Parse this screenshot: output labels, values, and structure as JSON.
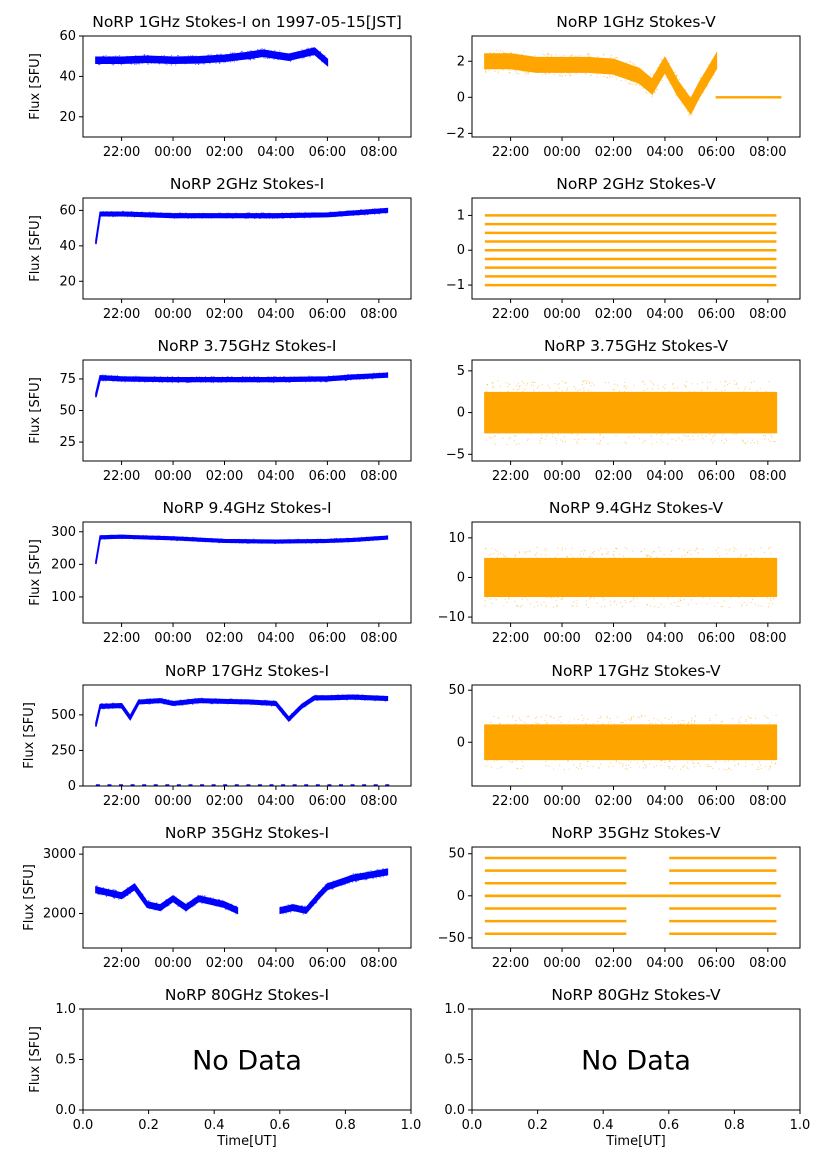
{
  "colors": {
    "stokes_i": "#0000ff",
    "stokes_v": "#ffa500",
    "axes": "#000000"
  },
  "chart_data": [
    {
      "type": "scatter",
      "title": "NoRP 1GHz Stokes-I on 1997-05-15[JST]",
      "ylabel": "Flux [SFU]",
      "xlabel": "",
      "xlim": [
        "1997-05-14 20:30",
        "1997-05-15 09:15"
      ],
      "ylim": [
        10,
        60
      ],
      "yticks": [
        20,
        40,
        60
      ],
      "xticks": [
        "22:00",
        "00:00",
        "02:00",
        "04:00",
        "06:00",
        "08:00"
      ],
      "grid": false,
      "series": [
        {
          "x": [
            "1997-05-14 21:00",
            "1997-05-14 22:00",
            "1997-05-14 23:00",
            "1997-05-15 00:00",
            "1997-05-15 01:00",
            "1997-05-15 02:00",
            "1997-05-15 03:00",
            "1997-05-15 03:30",
            "1997-05-15 04:00",
            "1997-05-15 04:30",
            "1997-05-15 05:00",
            "1997-05-15 05:30",
            "1997-05-15 06:00"
          ],
          "y": [
            48,
            48,
            48.5,
            48,
            48.2,
            49,
            50.5,
            51.5,
            50.5,
            49.5,
            51,
            52.5,
            47
          ],
          "band": 3
        }
      ]
    },
    {
      "type": "scatter",
      "title": "NoRP 1GHz Stokes-V",
      "ylabel": "",
      "xlabel": "",
      "xlim": [
        "1997-05-14 20:30",
        "1997-05-15 09:15"
      ],
      "ylim": [
        -2.2,
        3.4
      ],
      "yticks": [
        -2,
        0,
        2
      ],
      "xticks": [
        "22:00",
        "00:00",
        "02:00",
        "04:00",
        "06:00",
        "08:00"
      ],
      "grid": false,
      "series": [
        {
          "x": [
            "1997-05-14 21:00",
            "1997-05-14 22:00",
            "1997-05-14 23:00",
            "1997-05-15 00:00",
            "1997-05-15 01:00",
            "1997-05-15 02:00",
            "1997-05-15 03:00",
            "1997-05-15 03:30",
            "1997-05-15 04:00",
            "1997-05-15 04:30",
            "1997-05-15 05:00",
            "1997-05-15 05:20",
            "1997-05-15 05:45",
            "1997-05-15 06:00"
          ],
          "y": [
            2,
            2,
            1.8,
            1.8,
            1.8,
            1.7,
            1.2,
            0.6,
            1.8,
            0.5,
            -0.5,
            0.4,
            1.4,
            2.0
          ],
          "band": 0.8
        },
        {
          "x": [
            "1997-05-15 06:00",
            "1997-05-15 08:30"
          ],
          "y": [
            0,
            0
          ],
          "band": 0.05
        }
      ]
    },
    {
      "type": "scatter",
      "title": "NoRP 2GHz Stokes-I",
      "ylabel": "Flux [SFU]",
      "xlabel": "",
      "xlim": [
        "1997-05-14 20:30",
        "1997-05-15 09:15"
      ],
      "ylim": [
        10,
        67
      ],
      "yticks": [
        20,
        40,
        60
      ],
      "xticks": [
        "22:00",
        "00:00",
        "02:00",
        "04:00",
        "06:00",
        "08:00"
      ],
      "grid": false,
      "series": [
        {
          "x": [
            "1997-05-14 21:00",
            "1997-05-14 21:10",
            "1997-05-14 22:00",
            "1997-05-15 00:00",
            "1997-05-15 02:00",
            "1997-05-15 04:00",
            "1997-05-15 06:00",
            "1997-05-15 07:00",
            "1997-05-15 08:20"
          ],
          "y": [
            42,
            58,
            58,
            57,
            57,
            57,
            57.5,
            58.5,
            60
          ],
          "band": 2
        }
      ]
    },
    {
      "type": "scatter",
      "title": "NoRP 2GHz Stokes-V",
      "ylabel": "",
      "xlabel": "",
      "xlim": [
        "1997-05-14 20:30",
        "1997-05-15 09:15"
      ],
      "ylim": [
        -1.4,
        1.5
      ],
      "yticks": [
        -1,
        0,
        1
      ],
      "xticks": [
        "22:00",
        "00:00",
        "02:00",
        "04:00",
        "06:00",
        "08:00"
      ],
      "grid": false,
      "levels": [
        -1,
        -0.75,
        -0.5,
        -0.25,
        0,
        0.25,
        0.5,
        0.75,
        1
      ],
      "series": [
        {
          "x": [
            "1997-05-14 21:00",
            "1997-05-15 08:20"
          ],
          "y": [
            0,
            0
          ],
          "band": 0
        }
      ]
    },
    {
      "type": "scatter",
      "title": "NoRP 3.75GHz Stokes-I",
      "ylabel": "Flux [SFU]",
      "xlabel": "",
      "xlim": [
        "1997-05-14 20:30",
        "1997-05-15 09:15"
      ],
      "ylim": [
        10,
        90
      ],
      "yticks": [
        25,
        50,
        75
      ],
      "xticks": [
        "22:00",
        "00:00",
        "02:00",
        "04:00",
        "06:00",
        "08:00"
      ],
      "grid": false,
      "series": [
        {
          "x": [
            "1997-05-14 21:00",
            "1997-05-14 21:10",
            "1997-05-14 22:00",
            "1997-05-15 00:00",
            "1997-05-15 02:00",
            "1997-05-15 04:00",
            "1997-05-15 06:00",
            "1997-05-15 07:00",
            "1997-05-15 08:20"
          ],
          "y": [
            62,
            76,
            75,
            74.5,
            74.5,
            74.5,
            75,
            76.5,
            78
          ],
          "band": 3
        }
      ]
    },
    {
      "type": "scatter",
      "title": "NoRP 3.75GHz Stokes-V",
      "ylabel": "",
      "xlabel": "",
      "xlim": [
        "1997-05-14 20:30",
        "1997-05-15 09:15"
      ],
      "ylim": [
        -5.8,
        6.3
      ],
      "yticks": [
        -5,
        0,
        5
      ],
      "xticks": [
        "22:00",
        "00:00",
        "02:00",
        "04:00",
        "06:00",
        "08:00"
      ],
      "grid": false,
      "series": [
        {
          "x": [
            "1997-05-14 21:00",
            "1997-05-15 08:20"
          ],
          "y": [
            0,
            0
          ],
          "band": 4.8
        }
      ]
    },
    {
      "type": "scatter",
      "title": "NoRP 9.4GHz Stokes-I",
      "ylabel": "Flux [SFU]",
      "xlabel": "",
      "xlim": [
        "1997-05-14 20:30",
        "1997-05-15 09:15"
      ],
      "ylim": [
        20,
        330
      ],
      "yticks": [
        100,
        200,
        300
      ],
      "xticks": [
        "22:00",
        "00:00",
        "02:00",
        "04:00",
        "06:00",
        "08:00"
      ],
      "grid": false,
      "series": [
        {
          "x": [
            "1997-05-14 21:00",
            "1997-05-14 21:10",
            "1997-05-14 22:00",
            "1997-05-15 00:00",
            "1997-05-15 02:00",
            "1997-05-15 04:00",
            "1997-05-15 06:00",
            "1997-05-15 07:00",
            "1997-05-15 08:20"
          ],
          "y": [
            205,
            283,
            285,
            280,
            272,
            270,
            272,
            275,
            282
          ],
          "band": 8
        }
      ]
    },
    {
      "type": "scatter",
      "title": "NoRP 9.4GHz Stokes-V",
      "ylabel": "",
      "xlabel": "",
      "xlim": [
        "1997-05-14 20:30",
        "1997-05-15 09:15"
      ],
      "ylim": [
        -11.5,
        14
      ],
      "yticks": [
        -10,
        0,
        10
      ],
      "xticks": [
        "22:00",
        "00:00",
        "02:00",
        "04:00",
        "06:00",
        "08:00"
      ],
      "grid": false,
      "series": [
        {
          "x": [
            "1997-05-14 21:00",
            "1997-05-15 08:20"
          ],
          "y": [
            0,
            0
          ],
          "band": 9.5
        }
      ]
    },
    {
      "type": "scatter",
      "title": "NoRP 17GHz Stokes-I",
      "ylabel": "Flux [SFU]",
      "xlabel": "",
      "xlim": [
        "1997-05-14 20:30",
        "1997-05-15 09:15"
      ],
      "ylim": [
        0,
        710
      ],
      "yticks": [
        0,
        250,
        500
      ],
      "xticks": [
        "22:00",
        "00:00",
        "02:00",
        "04:00",
        "06:00",
        "08:00"
      ],
      "grid": false,
      "series": [
        {
          "x": [
            "1997-05-14 21:00",
            "1997-05-14 21:10",
            "1997-05-14 22:00",
            "1997-05-14 22:20",
            "1997-05-14 22:40",
            "1997-05-14 23:30",
            "1997-05-15 00:00",
            "1997-05-15 01:00",
            "1997-05-15 02:00",
            "1997-05-15 03:00",
            "1997-05-15 04:00",
            "1997-05-15 04:30",
            "1997-05-15 05:00",
            "1997-05-15 05:30",
            "1997-05-15 06:00",
            "1997-05-15 07:00",
            "1997-05-15 08:20"
          ],
          "y": [
            430,
            560,
            565,
            480,
            590,
            600,
            580,
            600,
            595,
            590,
            580,
            470,
            560,
            620,
            620,
            625,
            615
          ],
          "band": 25
        },
        {
          "x": [
            "1997-05-14 21:00",
            "1997-05-15 08:30"
          ],
          "y": [
            5,
            5
          ],
          "band": 0,
          "sparse": true
        }
      ]
    },
    {
      "type": "scatter",
      "title": "NoRP 17GHz Stokes-V",
      "ylabel": "",
      "xlabel": "",
      "xlim": [
        "1997-05-14 20:30",
        "1997-05-15 09:15"
      ],
      "ylim": [
        -42,
        55
      ],
      "yticks": [
        0,
        50
      ],
      "xticks": [
        "22:00",
        "00:00",
        "02:00",
        "04:00",
        "06:00",
        "08:00"
      ],
      "grid": false,
      "series": [
        {
          "x": [
            "1997-05-14 21:00",
            "1997-05-15 08:20"
          ],
          "y": [
            0,
            0
          ],
          "band": 33
        }
      ]
    },
    {
      "type": "scatter",
      "title": "NoRP 35GHz Stokes-I",
      "ylabel": "Flux [SFU]",
      "xlabel": "",
      "xlim": [
        "1997-05-14 20:30",
        "1997-05-15 09:15"
      ],
      "ylim": [
        1420,
        3120
      ],
      "yticks": [
        2000,
        3000
      ],
      "xticks": [
        "22:00",
        "00:00",
        "02:00",
        "04:00",
        "06:00",
        "08:00"
      ],
      "grid": false,
      "series": [
        {
          "x": [
            "1997-05-14 21:00",
            "1997-05-14 21:30",
            "1997-05-14 22:00",
            "1997-05-14 22:30",
            "1997-05-14 23:00",
            "1997-05-14 23:30",
            "1997-05-15 00:00",
            "1997-05-15 00:30",
            "1997-05-15 01:00",
            "1997-05-15 01:30",
            "1997-05-15 02:00",
            "1997-05-15 02:30"
          ],
          "y": [
            2400,
            2350,
            2300,
            2450,
            2150,
            2100,
            2250,
            2100,
            2250,
            2200,
            2150,
            2050
          ],
          "band": 90
        },
        {
          "x": [
            "1997-05-15 04:10",
            "1997-05-15 04:40",
            "1997-05-15 05:10",
            "1997-05-15 05:40",
            "1997-05-15 06:00",
            "1997-05-15 07:00",
            "1997-05-15 08:20"
          ],
          "y": [
            2050,
            2100,
            2050,
            2300,
            2450,
            2600,
            2700
          ],
          "band": 90
        }
      ]
    },
    {
      "type": "scatter",
      "title": "NoRP 35GHz Stokes-V",
      "ylabel": "",
      "xlabel": "",
      "xlim": [
        "1997-05-14 20:30",
        "1997-05-15 09:15"
      ],
      "ylim": [
        -62,
        58
      ],
      "yticks": [
        -50,
        0,
        50
      ],
      "xticks": [
        "22:00",
        "00:00",
        "02:00",
        "04:00",
        "06:00",
        "08:00"
      ],
      "grid": false,
      "levels": [
        -45,
        -30,
        -15,
        0,
        15,
        30,
        45
      ],
      "series": [
        {
          "x": [
            "1997-05-14 21:00",
            "1997-05-15 08:30"
          ],
          "y": [
            0,
            0
          ],
          "band": 0
        }
      ]
    },
    {
      "type": "scatter",
      "title": "NoRP 80GHz Stokes-I",
      "ylabel": "Flux [SFU]",
      "xlabel": "Time[UT]",
      "xlim": [
        0,
        1
      ],
      "ylim": [
        0,
        1
      ],
      "yticks": [
        "0.0",
        "0.5",
        "1.0"
      ],
      "xticks": [
        "0.0",
        "0.2",
        "0.4",
        "0.6",
        "0.8",
        "1.0"
      ],
      "grid": false,
      "annotation": "No Data",
      "series": []
    },
    {
      "type": "scatter",
      "title": "NoRP 80GHz Stokes-V",
      "ylabel": "",
      "xlabel": "Time[UT]",
      "xlim": [
        0,
        1
      ],
      "ylim": [
        0,
        1
      ],
      "yticks": [
        "0.0",
        "0.5",
        "1.0"
      ],
      "xticks": [
        "0.0",
        "0.2",
        "0.4",
        "0.6",
        "0.8",
        "1.0"
      ],
      "grid": false,
      "annotation": "No Data",
      "series": []
    }
  ]
}
